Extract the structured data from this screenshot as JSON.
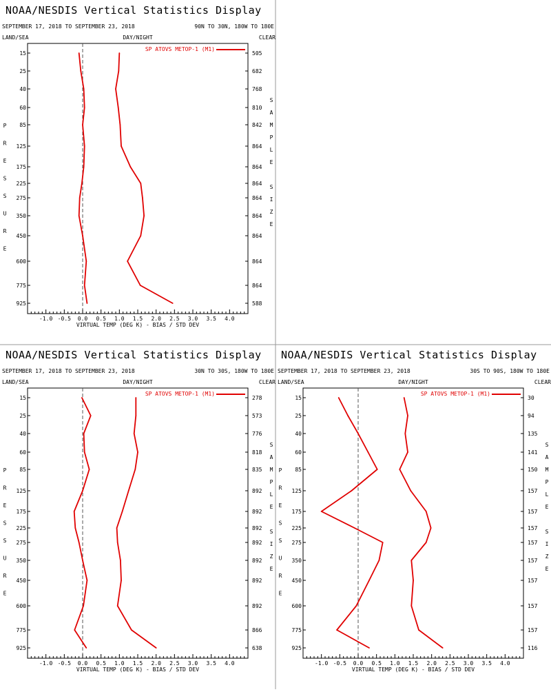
{
  "colors": {
    "series": "#e00000",
    "zero_line": "#555555",
    "divider": "#999999",
    "text": "#000000"
  },
  "header": {
    "title": "NOAA/NESDIS Vertical Statistics Display",
    "dates": "SEPTEMBER 17, 2018 TO SEPTEMBER 23, 2018",
    "land_sea": "LAND/SEA",
    "day_night": "DAY/NIGHT",
    "clear": "CLEAR",
    "y_side_label": "PRESSURE",
    "right_side_label": "SAMPLE SIZE"
  },
  "chart_data": [
    {
      "type": "line",
      "region": "90N TO 30N, 180W TO 180E",
      "xlabel": "VIRTUAL TEMP (DEG K) - BIAS / STD DEV",
      "xlim": [
        -1.5,
        4.5
      ],
      "x_ticks": [
        "-1.0",
        "-0.5",
        "0.0",
        "0.5",
        "1.0",
        "1.5",
        "2.0",
        "2.5",
        "3.0",
        "3.5",
        "4.0"
      ],
      "pressure_levels": [
        "15",
        "25",
        "40",
        "60",
        "85",
        "125",
        "175",
        "225",
        "275",
        "350",
        "450",
        "600",
        "775",
        "925"
      ],
      "sample_size": [
        "505",
        "682",
        "768",
        "810",
        "842",
        "864",
        "864",
        "864",
        "864",
        "864",
        "864",
        "864",
        "864",
        "588"
      ],
      "legend": "SP ATOVS METOP-1 (M1)",
      "series": [
        {
          "values": [
            -0.1,
            -0.05,
            0.03,
            0.05,
            0.0,
            0.05,
            0.03,
            -0.02,
            -0.08,
            -0.1,
            0.0,
            0.1,
            0.05,
            0.12
          ]
        },
        {
          "values": [
            1.0,
            0.98,
            0.9,
            0.97,
            1.02,
            1.05,
            1.3,
            1.58,
            1.63,
            1.67,
            1.58,
            1.22,
            1.57,
            2.45
          ]
        }
      ]
    },
    {
      "type": "line",
      "region": "30N TO 30S, 180W TO 180E",
      "xlabel": "VIRTUAL TEMP (DEG K) - BIAS / STD DEV",
      "xlim": [
        -1.5,
        4.5
      ],
      "x_ticks": [
        "-1.0",
        "-0.5",
        "0.0",
        "0.5",
        "1.0",
        "1.5",
        "2.0",
        "2.5",
        "3.0",
        "3.5",
        "4.0"
      ],
      "pressure_levels": [
        "15",
        "25",
        "40",
        "60",
        "85",
        "125",
        "175",
        "225",
        "275",
        "350",
        "450",
        "600",
        "775",
        "925"
      ],
      "sample_size": [
        "278",
        "573",
        "776",
        "818",
        "835",
        "892",
        "892",
        "892",
        "892",
        "892",
        "892",
        "892",
        "866",
        "638"
      ],
      "legend": "SP ATOVS METOP-1 (M1)",
      "series": [
        {
          "values": [
            -0.02,
            0.22,
            0.03,
            0.05,
            0.18,
            0.0,
            -0.23,
            -0.2,
            -0.1,
            0.0,
            0.12,
            0.02,
            -0.22,
            0.1
          ]
        },
        {
          "values": [
            1.45,
            1.45,
            1.4,
            1.5,
            1.43,
            1.25,
            1.08,
            0.93,
            0.95,
            1.03,
            1.05,
            0.95,
            1.33,
            2.0
          ]
        }
      ]
    },
    {
      "type": "line",
      "region": "30S TO 90S, 180W TO 180E",
      "xlabel": "VIRTUAL TEMP (DEG K) - BIAS / STD DEV",
      "xlim": [
        -1.5,
        4.5
      ],
      "x_ticks": [
        "-1.0",
        "-0.5",
        "0.0",
        "0.5",
        "1.0",
        "1.5",
        "2.0",
        "2.5",
        "3.0",
        "3.5",
        "4.0"
      ],
      "pressure_levels": [
        "15",
        "25",
        "40",
        "60",
        "85",
        "125",
        "175",
        "225",
        "275",
        "350",
        "450",
        "600",
        "775",
        "925"
      ],
      "sample_size": [
        "30",
        "94",
        "135",
        "141",
        "150",
        "157",
        "157",
        "157",
        "157",
        "157",
        "157",
        "157",
        "157",
        "116"
      ],
      "legend": "SP ATOVS METOP-1 (M1)",
      "series": [
        {
          "values": [
            -0.53,
            -0.28,
            0.0,
            0.27,
            0.52,
            -0.18,
            -1.0,
            -0.1,
            0.67,
            0.57,
            0.3,
            -0.05,
            -0.58,
            0.3
          ]
        },
        {
          "values": [
            1.25,
            1.35,
            1.28,
            1.35,
            1.13,
            1.43,
            1.85,
            1.98,
            1.85,
            1.45,
            1.5,
            1.45,
            1.65,
            2.3
          ]
        }
      ]
    }
  ]
}
